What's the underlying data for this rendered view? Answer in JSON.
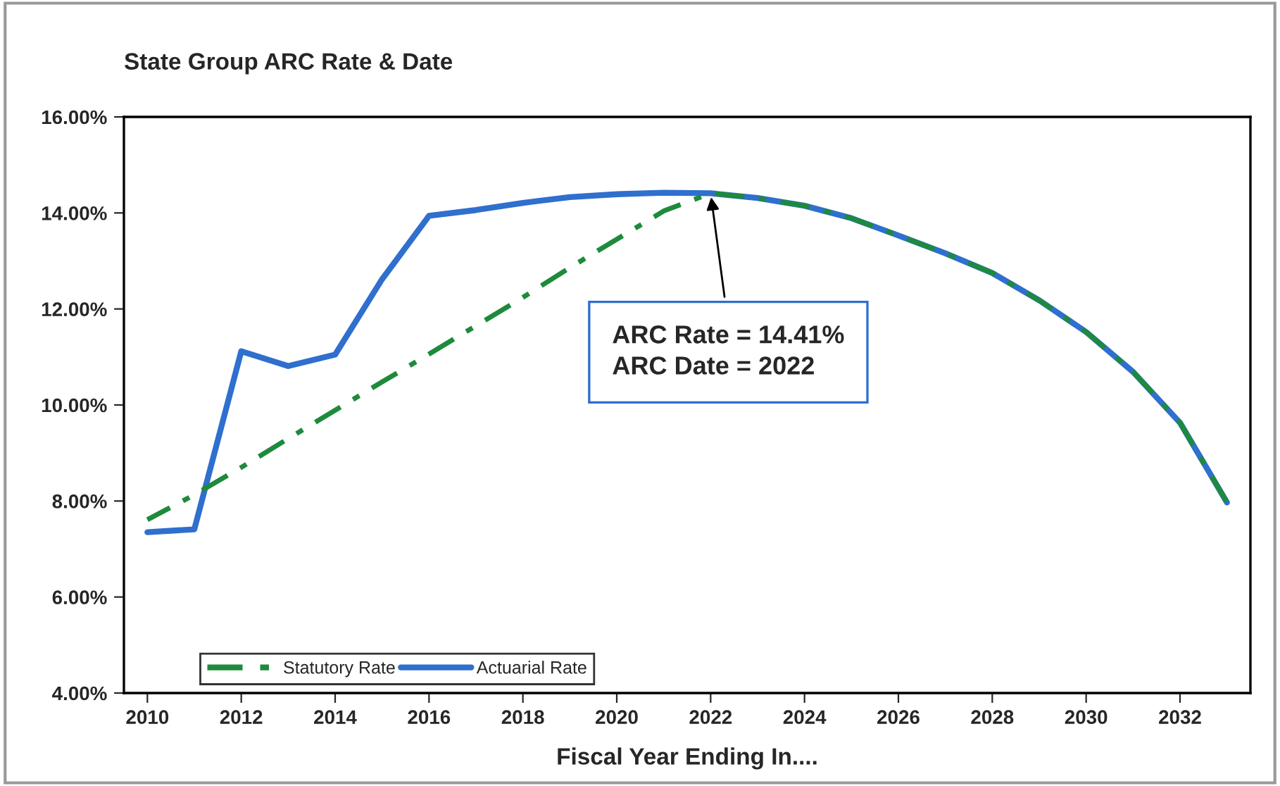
{
  "chart_data": {
    "type": "line",
    "title": "State Group ARC Rate & Date",
    "xlabel": "Fiscal Year Ending In....",
    "x": [
      2010,
      2011,
      2012,
      2013,
      2014,
      2015,
      2016,
      2017,
      2018,
      2019,
      2020,
      2021,
      2022,
      2023,
      2024,
      2025,
      2026,
      2027,
      2028,
      2029,
      2030,
      2031,
      2032,
      2033
    ],
    "series": [
      {
        "name": "Statutory Rate",
        "color": "#1e8a3c",
        "line_style": "dashed",
        "values": [
          7.61,
          8.13,
          8.7,
          9.3,
          9.89,
          10.48,
          11.06,
          11.65,
          12.24,
          12.86,
          13.45,
          14.04,
          14.41,
          14.31,
          14.15,
          13.89,
          13.53,
          13.16,
          12.75,
          12.18,
          11.52,
          10.69,
          9.63,
          7.97
        ]
      },
      {
        "name": "Actuarial Rate",
        "color": "#2f6fce",
        "line_style": "solid",
        "values": [
          7.35,
          7.41,
          11.12,
          10.81,
          11.05,
          12.62,
          13.94,
          14.06,
          14.21,
          14.33,
          14.39,
          14.42,
          14.41,
          14.31,
          14.15,
          13.89,
          13.53,
          13.16,
          12.75,
          12.18,
          11.52,
          10.69,
          9.63,
          7.97
        ]
      }
    ],
    "xlim": [
      2009.5,
      2033.5
    ],
    "xticks": [
      2010,
      2012,
      2014,
      2016,
      2018,
      2020,
      2022,
      2024,
      2026,
      2028,
      2030,
      2032
    ],
    "ylim": [
      4,
      16
    ],
    "yticks": [
      {
        "value": 4,
        "label": "4.00%"
      },
      {
        "value": 6,
        "label": "6.00%"
      },
      {
        "value": 8,
        "label": "8.00%"
      },
      {
        "value": 10,
        "label": "10.00%"
      },
      {
        "value": 12,
        "label": "12.00%"
      },
      {
        "value": 14,
        "label": "14.00%"
      },
      {
        "value": 16,
        "label": "16.00%"
      }
    ],
    "annotations": [
      {
        "text": "ARC Rate = 14.41%\nARC Date = 2022",
        "x": 2022,
        "y": 14.41
      }
    ],
    "grid": false,
    "legend": "bottom left",
    "marker": "none"
  }
}
